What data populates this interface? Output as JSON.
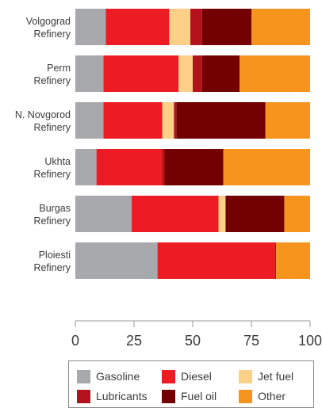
{
  "chart_data": {
    "type": "bar",
    "orientation": "horizontal",
    "stacked": true,
    "categories": [
      [
        "Volgograd",
        "Refinery"
      ],
      [
        "Perm",
        "Refinery"
      ],
      [
        "N. Novgorod",
        "Refinery"
      ],
      [
        "Ukhta",
        "Refinery"
      ],
      [
        "Burgas",
        "Refinery"
      ],
      [
        "Ploiesti",
        "Refinery"
      ]
    ],
    "series": [
      {
        "name": "Gasoline",
        "color": "#a7a9ac",
        "values": [
          13,
          12,
          12,
          9,
          24,
          35
        ]
      },
      {
        "name": "Diesel",
        "color": "#ed1c24",
        "values": [
          27,
          32,
          25,
          28,
          37,
          50
        ]
      },
      {
        "name": "Jet fuel",
        "color": "#fdd088",
        "values": [
          9,
          6,
          5,
          0,
          3,
          0
        ]
      },
      {
        "name": "Lubricants",
        "color": "#b1121b",
        "values": [
          5,
          4,
          1,
          1,
          0,
          0.5
        ]
      },
      {
        "name": "Fuel oil",
        "color": "#730000",
        "values": [
          21,
          16,
          38,
          25,
          25,
          0
        ]
      },
      {
        "name": "Other",
        "color": "#f7941d",
        "values": [
          25,
          30,
          19,
          37,
          11,
          14.5
        ]
      }
    ],
    "xlim": [
      0,
      100
    ],
    "xticks": [
      0,
      25,
      50,
      75,
      100
    ],
    "legend_position": "bottom",
    "grid": false
  }
}
